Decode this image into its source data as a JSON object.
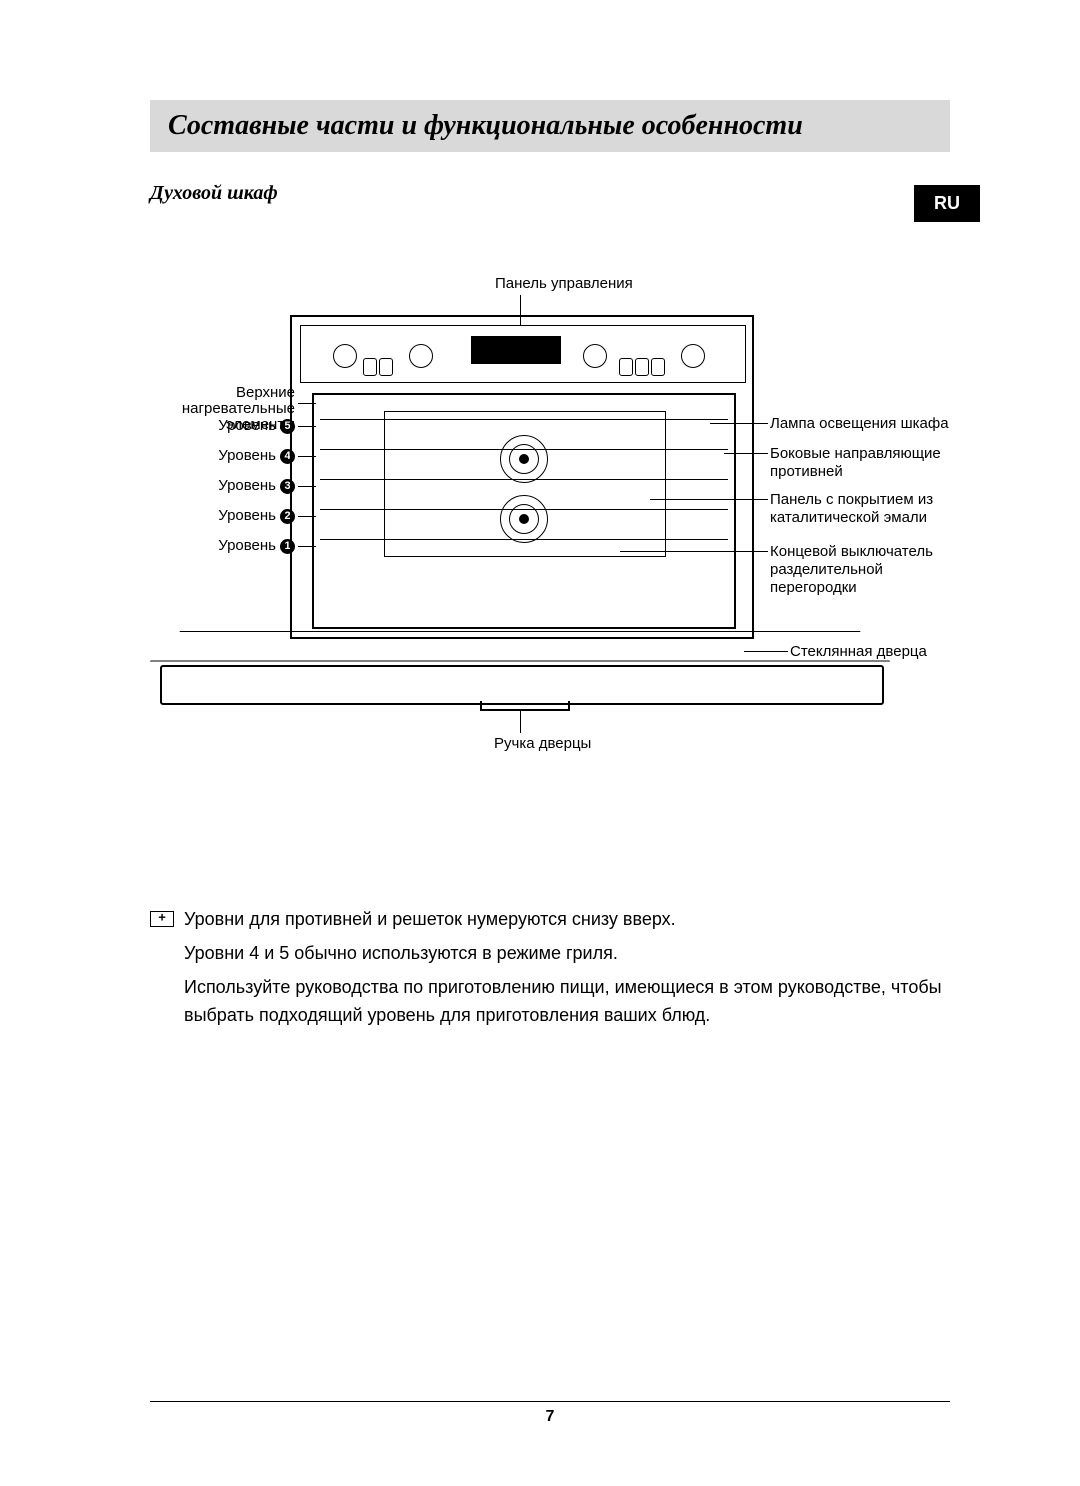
{
  "title": "Составные части и функциональные особенности",
  "subhead": "Духовой шкаф",
  "lang_badge": "RU",
  "diagram": {
    "top_label": "Панель управления",
    "left_upper": "Верхние нагревательные\nэлементы",
    "levels": [
      {
        "word": "Уровень",
        "num": "5"
      },
      {
        "word": "Уровень",
        "num": "4"
      },
      {
        "word": "Уровень",
        "num": "3"
      },
      {
        "word": "Уровень",
        "num": "2"
      },
      {
        "word": "Уровень",
        "num": "1"
      }
    ],
    "right_labels": [
      "Лампа освещения шкафа",
      "Боковые направляющие\nпротивней",
      "Панель с покрытием из\nкаталитической эмали",
      "Концевой выключатель\nразделительной перегородки",
      "Стеклянная дверца"
    ],
    "bottom_label": "Ручка дверцы"
  },
  "notes": {
    "line1": "Уровни для противней и решеток нумеруются снизу вверх.",
    "line2": "Уровни 4 и 5 обычно используются в режиме гриля.",
    "line3": "Используйте руководства по приготовлению пищи, имеющиеся в этом руководстве, чтобы выбрать подходящий уровень для приготовления ваших блюд."
  },
  "page_number": "7",
  "style": {
    "title_bg": "#d9d9d9",
    "badge_bg": "#000000",
    "badge_fg": "#ffffff",
    "stroke": "#000000",
    "body_font_size": 18,
    "label_font_size": 15
  }
}
